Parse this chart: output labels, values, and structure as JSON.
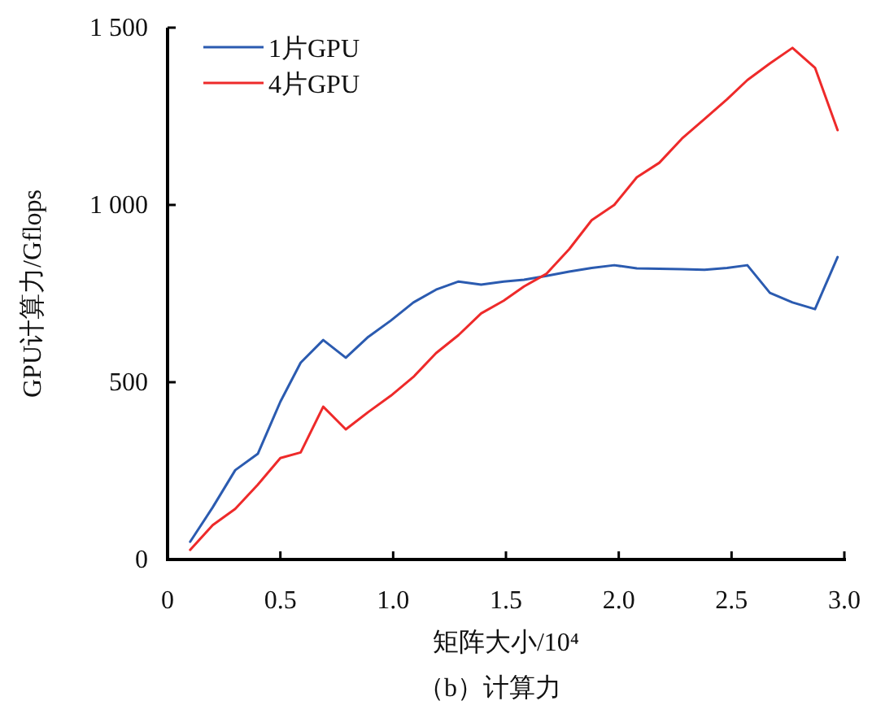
{
  "chart_data": {
    "type": "line",
    "xlabel": "矩阵大小/10⁴",
    "ylabel": "GPU计算力/Gflops",
    "annotations": [
      "（b）计算力"
    ],
    "x": [
      0.1,
      0.2,
      0.3,
      0.4,
      0.5,
      0.59,
      0.69,
      0.79,
      0.89,
      0.99,
      1.09,
      1.19,
      1.29,
      1.39,
      1.49,
      1.58,
      1.68,
      1.78,
      1.88,
      1.98,
      2.08,
      2.18,
      2.28,
      2.38,
      2.48,
      2.57,
      2.67,
      2.77,
      2.87,
      2.97
    ],
    "series": [
      {
        "name": "1片GPU",
        "color": "#2b5bb0",
        "values": [
          50,
          147,
          252,
          298,
          445,
          555,
          619,
          569,
          628,
          674,
          725,
          761,
          784,
          775,
          784,
          789,
          800,
          812,
          822,
          830,
          821,
          820,
          819,
          817,
          822,
          830,
          752,
          725,
          706,
          853
        ]
      },
      {
        "name": "4片GPU",
        "color": "#ee2a2a",
        "values": [
          27,
          97,
          143,
          211,
          286,
          302,
          431,
          367,
          416,
          462,
          515,
          582,
          633,
          694,
          730,
          770,
          806,
          875,
          957,
          1000,
          1078,
          1119,
          1187,
          1242,
          1298,
          1352,
          1399,
          1443,
          1387,
          1211
        ]
      }
    ],
    "xlim": [
      0,
      3
    ],
    "xticks": [
      0,
      0.5,
      {
        "value": 1,
        "label": "1.0"
      },
      1.5,
      {
        "value": 2,
        "label": "2.0"
      },
      2.5,
      {
        "value": 3,
        "label": "3.0"
      }
    ],
    "ylim": [
      0,
      1500
    ],
    "yticks": [
      0,
      500,
      {
        "value": 1000,
        "label": "1 000"
      },
      {
        "value": 1500,
        "label": "1 500"
      }
    ],
    "legend": "top left",
    "grid": false
  }
}
